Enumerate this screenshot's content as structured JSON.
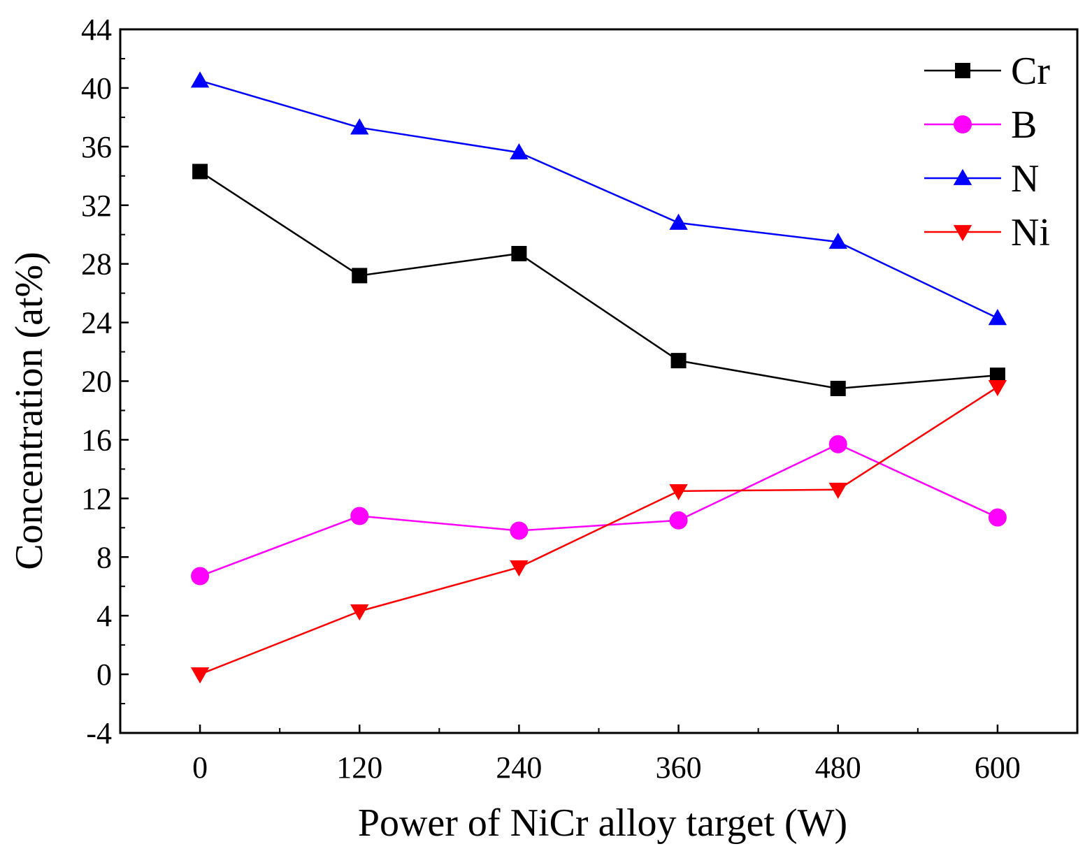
{
  "chart_data": {
    "type": "line",
    "title": "",
    "xlabel": "Power of NiCr alloy target (W)",
    "ylabel": "Concentration (at%)",
    "x": [
      0,
      120,
      240,
      360,
      480,
      600
    ],
    "xlim": [
      -60,
      660
    ],
    "ylim": [
      -4,
      44
    ],
    "x_ticks": [
      0,
      120,
      240,
      360,
      480,
      600
    ],
    "x_tick_labels": [
      "0",
      "120",
      "240",
      "360",
      "480",
      "600"
    ],
    "y_ticks": [
      -4,
      0,
      4,
      8,
      12,
      16,
      20,
      24,
      28,
      32,
      36,
      40,
      44
    ],
    "y_tick_labels": [
      "-4",
      "0",
      "4",
      "8",
      "12",
      "16",
      "20",
      "24",
      "28",
      "32",
      "36",
      "40",
      "44"
    ],
    "grid": false,
    "legend_position": "top-right",
    "series": [
      {
        "name": "Cr",
        "color": "#000000",
        "marker": "square",
        "values": [
          34.3,
          27.2,
          28.7,
          21.4,
          19.5,
          20.4
        ]
      },
      {
        "name": "B",
        "color": "#ff00ff",
        "marker": "circle",
        "values": [
          6.7,
          10.8,
          9.8,
          10.5,
          15.7,
          10.7
        ]
      },
      {
        "name": "N",
        "color": "#0000ff",
        "marker": "triangle-up",
        "values": [
          40.5,
          37.3,
          35.6,
          30.8,
          29.5,
          24.3
        ]
      },
      {
        "name": "Ni",
        "color": "#ff0000",
        "marker": "triangle-down",
        "values": [
          0.0,
          4.3,
          7.3,
          12.5,
          12.6,
          19.6
        ]
      }
    ]
  }
}
